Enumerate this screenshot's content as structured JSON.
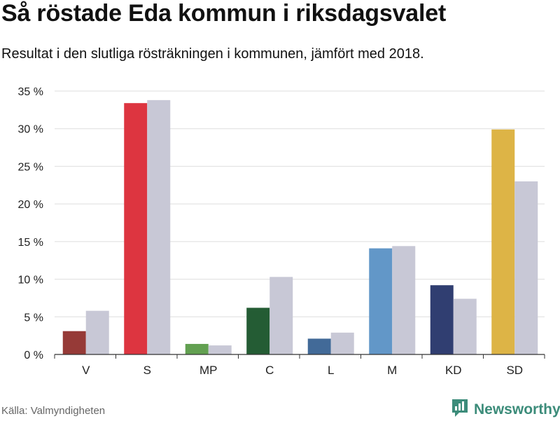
{
  "header": {
    "title": "Så röstade Eda kommun i riksdagsvalet",
    "subtitle": "Resultat i den slutliga rösträkningen i kommunen, jämfört med 2018."
  },
  "footer": {
    "source": "Källa: Valmyndigheten",
    "brand": "Newsworthy",
    "brand_icon": "bar-chart-icon",
    "brand_color": "#3c8c7a"
  },
  "chart_data": {
    "type": "bar",
    "categories": [
      "V",
      "S",
      "MP",
      "C",
      "L",
      "M",
      "KD",
      "SD"
    ],
    "series": [
      {
        "values": [
          3.1,
          33.4,
          1.4,
          6.2,
          2.1,
          14.1,
          9.2,
          29.9
        ],
        "colors": [
          "#963a37",
          "#dd3540",
          "#62a051",
          "#245c34",
          "#426a98",
          "#6297c8",
          "#303e71",
          "#ddb446"
        ]
      },
      {
        "values": [
          5.8,
          33.8,
          1.2,
          10.3,
          2.9,
          14.4,
          7.4,
          23.0
        ],
        "colors": [
          "#c8c8d6",
          "#c8c8d6",
          "#c8c8d6",
          "#c8c8d6",
          "#c8c8d6",
          "#c8c8d6",
          "#c8c8d6",
          "#c8c8d6"
        ]
      }
    ],
    "yticks": [
      "0 %",
      "5 %",
      "10 %",
      "15 %",
      "20 %",
      "25 %",
      "30 %",
      "35 %"
    ],
    "ylim": [
      0,
      35
    ],
    "grid": true,
    "legend": "none"
  }
}
